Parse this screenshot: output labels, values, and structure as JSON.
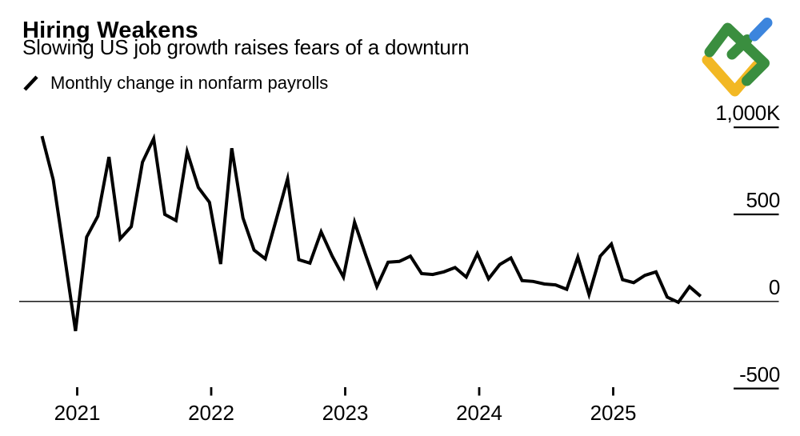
{
  "header": {
    "title": "Hiring Weakens",
    "subtitle": "Slowing US job growth raises fears of a downturn",
    "legend_label": "Monthly change in nonfarm payrolls"
  },
  "logo": {
    "name": "litefinance-brand-mark",
    "colors": {
      "green": "#3a8e3f",
      "blue": "#3c85dd",
      "yellow": "#f2b824"
    }
  },
  "chart_data": {
    "type": "line",
    "title": "Hiring Weakens",
    "subtitle": "Slowing US job growth raises fears of a downturn",
    "series_name": "Monthly change in nonfarm payrolls",
    "unit": "thousands of jobs (K)",
    "line_color": "#000000",
    "grid": false,
    "axis_side": "right",
    "ylim": [
      -650,
      1150
    ],
    "x": [
      "Sep 2020",
      "Oct 2020",
      "Nov 2020",
      "Dec 2020",
      "Jan 2021",
      "Feb 2021",
      "Mar 2021",
      "Apr 2021",
      "May 2021",
      "Jun 2021",
      "Jul 2021",
      "Aug 2021",
      "Sep 2021",
      "Oct 2021",
      "Nov 2021",
      "Dec 2021",
      "Jan 2022",
      "Feb 2022",
      "Mar 2022",
      "Apr 2022",
      "May 2022",
      "Jun 2022",
      "Jul 2022",
      "Aug 2022",
      "Sep 2022",
      "Oct 2022",
      "Nov 2022",
      "Dec 2022",
      "Jan 2023",
      "Feb 2023",
      "Mar 2023",
      "Apr 2023",
      "May 2023",
      "Jun 2023",
      "Jul 2023",
      "Aug 2023",
      "Sep 2023",
      "Oct 2023",
      "Nov 2023",
      "Dec 2023",
      "Jan 2024",
      "Feb 2024",
      "Mar 2024",
      "Apr 2024",
      "May 2024",
      "Jun 2024",
      "Jul 2024",
      "Aug 2024",
      "Sep 2024",
      "Oct 2024",
      "Nov 2024",
      "Dec 2024",
      "Jan 2025",
      "Feb 2025",
      "Mar 2025",
      "Apr 2025",
      "May 2025",
      "Jun 2025",
      "Jul 2025",
      "Aug 2025"
    ],
    "values": [
      950,
      700,
      270,
      -170,
      370,
      490,
      830,
      360,
      430,
      800,
      935,
      500,
      465,
      860,
      655,
      570,
      215,
      880,
      480,
      295,
      245,
      475,
      705,
      240,
      220,
      400,
      260,
      140,
      455,
      265,
      85,
      225,
      230,
      260,
      160,
      155,
      170,
      195,
      140,
      275,
      130,
      212,
      250,
      120,
      115,
      100,
      95,
      70,
      255,
      40,
      260,
      330,
      125,
      108,
      150,
      170,
      25,
      -5,
      85,
      30
    ],
    "y_ticks": [
      {
        "label": "1,000K",
        "value": 1000
      },
      {
        "label": "500",
        "value": 500
      },
      {
        "label": "0",
        "value": 0
      },
      {
        "label": "-500",
        "value": -500
      }
    ],
    "x_ticks": [
      "2021",
      "2022",
      "2023",
      "2024",
      "2025"
    ]
  }
}
